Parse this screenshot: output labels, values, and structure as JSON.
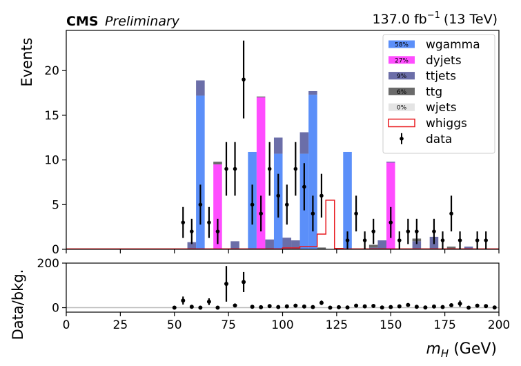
{
  "header": {
    "cms_label": "CMS",
    "preliminary_label": "Preliminary",
    "lumi_value": "137.0 fb",
    "lumi_exponent": "−1",
    "lumi_energy": "(13 TeV)"
  },
  "chart_data": [
    {
      "type": "bar",
      "stacked": true,
      "ylabel": "Events",
      "xlim": [
        0,
        200
      ],
      "ylim": [
        0,
        24.5
      ],
      "yticks": [
        0,
        5,
        10,
        15,
        20
      ],
      "bin_width": 4,
      "legend_position": "top-right",
      "series": [
        {
          "name": "wgamma",
          "fraction_label": "58%",
          "color": "#5b8ff9",
          "bins": [
            {
              "x": 60,
              "y": 17.2
            },
            {
              "x": 84,
              "y": 10.9
            },
            {
              "x": 96,
              "y": 10.7
            },
            {
              "x": 108,
              "y": 10.7
            },
            {
              "x": 112,
              "y": 17.3
            },
            {
              "x": 128,
              "y": 10.9
            }
          ]
        },
        {
          "name": "dyjets",
          "fraction_label": "27%",
          "color": "#ff4dff",
          "bins": [
            {
              "x": 68,
              "y": 9.5
            },
            {
              "x": 88,
              "y": 17.0
            },
            {
              "x": 148,
              "y": 9.7
            }
          ]
        },
        {
          "name": "ttjets",
          "fraction_label": "9%",
          "color": "#6b6ea8",
          "bins": [
            {
              "x": 56,
              "y": 0.8
            },
            {
              "x": 60,
              "y": 1.7
            },
            {
              "x": 76,
              "y": 0.9
            },
            {
              "x": 92,
              "y": 1.1
            },
            {
              "x": 96,
              "y": 1.8
            },
            {
              "x": 100,
              "y": 1.3
            },
            {
              "x": 104,
              "y": 1.0
            },
            {
              "x": 108,
              "y": 2.4
            },
            {
              "x": 112,
              "y": 0.4
            },
            {
              "x": 140,
              "y": 0.2
            },
            {
              "x": 144,
              "y": 1.0
            },
            {
              "x": 148,
              "y": 0.1
            },
            {
              "x": 160,
              "y": 0.9
            },
            {
              "x": 168,
              "y": 1.4
            },
            {
              "x": 184,
              "y": 0.3
            }
          ]
        },
        {
          "name": "ttg",
          "fraction_label": "6%",
          "color": "#6a6a6a",
          "bins": [
            {
              "x": 68,
              "y": 0.3
            },
            {
              "x": 88,
              "y": 0.1
            },
            {
              "x": 116,
              "y": 0.2
            },
            {
              "x": 140,
              "y": 0.3
            },
            {
              "x": 160,
              "y": 0.3
            },
            {
              "x": 176,
              "y": 0.3
            }
          ]
        },
        {
          "name": "wjets",
          "fraction_label": "0%",
          "color": "#e4e4e4",
          "bins": []
        }
      ],
      "signal": {
        "name": "whiggs",
        "color": "#e8191f",
        "edges": [
          0,
          100,
          108,
          116,
          120,
          124,
          128,
          200
        ],
        "values": [
          0.05,
          0.15,
          0.3,
          1.7,
          5.5,
          0.1,
          0.05
        ]
      },
      "data": {
        "name": "data",
        "x": [
          54,
          58,
          62,
          66,
          70,
          74,
          78,
          82,
          86,
          90,
          94,
          98,
          102,
          106,
          110,
          114,
          118,
          130,
          134,
          138,
          142,
          150,
          154,
          158,
          162,
          170,
          174,
          178,
          182,
          190,
          194
        ],
        "y": [
          3,
          2,
          5,
          3,
          2,
          9,
          9,
          19,
          5,
          4,
          9,
          6,
          5,
          9,
          7,
          4,
          6,
          1,
          4,
          1,
          2,
          3,
          1,
          2,
          2,
          2,
          1,
          4,
          1,
          1,
          1
        ]
      }
    },
    {
      "type": "scatter",
      "xlabel": "m_H (GeV)",
      "ylabel": "Data/bkg.",
      "xlim": [
        0,
        200
      ],
      "ylim": [
        -20,
        200
      ],
      "yticks": [
        0,
        200
      ],
      "xticks": [
        0,
        25,
        50,
        75,
        100,
        125,
        150,
        175,
        200
      ],
      "reference_line": 0,
      "points": [
        {
          "x": 50,
          "y": 0
        },
        {
          "x": 54,
          "y": 32,
          "err": 18
        },
        {
          "x": 58,
          "y": 4
        },
        {
          "x": 62,
          "y": 0
        },
        {
          "x": 66,
          "y": 27,
          "err": 15
        },
        {
          "x": 70,
          "y": 0
        },
        {
          "x": 74,
          "y": 107,
          "err": 80
        },
        {
          "x": 78,
          "y": 10
        },
        {
          "x": 82,
          "y": 115,
          "err": 45
        },
        {
          "x": 86,
          "y": 4
        },
        {
          "x": 90,
          "y": 2
        },
        {
          "x": 94,
          "y": 7
        },
        {
          "x": 98,
          "y": 3
        },
        {
          "x": 102,
          "y": 6
        },
        {
          "x": 106,
          "y": 9
        },
        {
          "x": 110,
          "y": 5
        },
        {
          "x": 114,
          "y": 3
        },
        {
          "x": 118,
          "y": 22,
          "err": 10
        },
        {
          "x": 122,
          "y": 0
        },
        {
          "x": 126,
          "y": 2
        },
        {
          "x": 130,
          "y": 1
        },
        {
          "x": 134,
          "y": 9
        },
        {
          "x": 138,
          "y": 6
        },
        {
          "x": 142,
          "y": 8
        },
        {
          "x": 146,
          "y": 1
        },
        {
          "x": 150,
          "y": 3
        },
        {
          "x": 154,
          "y": 6
        },
        {
          "x": 158,
          "y": 12
        },
        {
          "x": 162,
          "y": 4
        },
        {
          "x": 166,
          "y": 1
        },
        {
          "x": 170,
          "y": 5
        },
        {
          "x": 174,
          "y": 3
        },
        {
          "x": 178,
          "y": 11
        },
        {
          "x": 182,
          "y": 18,
          "err": 14
        },
        {
          "x": 186,
          "y": 0
        },
        {
          "x": 190,
          "y": 9
        },
        {
          "x": 194,
          "y": 7
        },
        {
          "x": 198,
          "y": 1
        }
      ]
    }
  ]
}
